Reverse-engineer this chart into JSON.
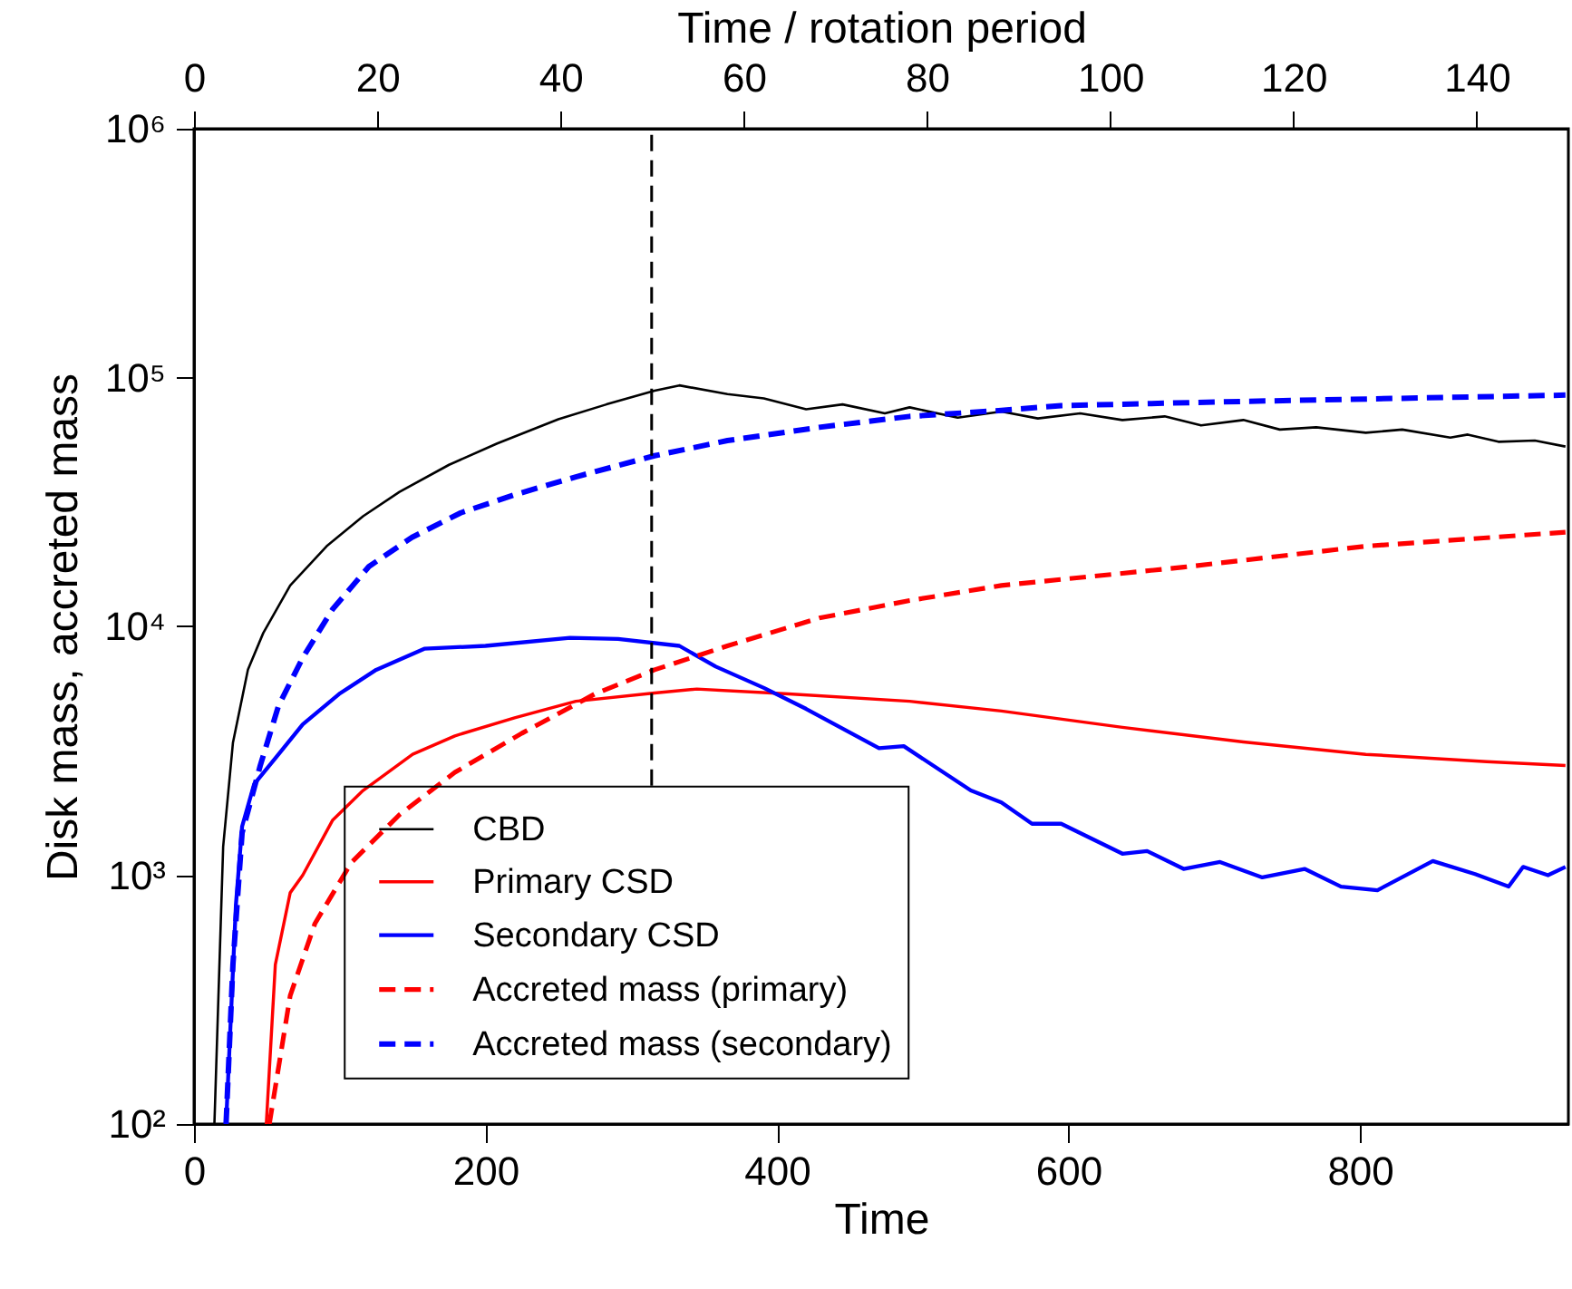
{
  "chart_data": {
    "type": "line",
    "xlabel": "Time",
    "ylabel": "Disk mass, accreted mass",
    "x2label": "Time / rotation period",
    "xlim": [
      0,
      943
    ],
    "xticks": [
      0,
      200,
      400,
      600,
      800
    ],
    "x2lim": [
      0,
      150
    ],
    "x2ticks": [
      0,
      20,
      40,
      60,
      80,
      100,
      120,
      140
    ],
    "ylim": [
      100,
      1000000
    ],
    "log": "y",
    "yticks": [
      {
        "value": 100,
        "label": "10²"
      },
      {
        "value": 1000,
        "label": "10³"
      },
      {
        "value": 10000,
        "label": "10⁴"
      },
      {
        "value": 100000,
        "label": "10⁵"
      },
      {
        "value": 1000000,
        "label": "10⁶"
      }
    ],
    "legend": "bottom",
    "grid": false,
    "marker": "none",
    "ref_lines": [
      {
        "axis": "x",
        "value": 314,
        "color": "#000000",
        "line_style": "dashed"
      }
    ],
    "series": [
      {
        "name": "CBD",
        "color": "#000000",
        "line_style": "solid",
        "x": [
          14,
          20,
          26.7,
          37,
          47.5,
          66,
          91,
          116,
          141,
          175,
          208,
          250,
          283,
          316,
          333,
          366,
          391,
          420,
          445,
          474,
          491,
          524,
          554,
          579,
          608,
          637,
          666,
          691,
          720,
          745,
          770,
          804,
          829,
          862,
          874,
          895,
          920,
          941
        ],
        "values": [
          100,
          1300,
          3400,
          6700,
          9400,
          14600,
          21000,
          27700,
          34700,
          44600,
          54300,
          68000,
          78000,
          88500,
          93000,
          85800,
          82400,
          74600,
          78000,
          71800,
          75900,
          69000,
          73000,
          68500,
          71800,
          67500,
          69800,
          64200,
          67500,
          61800,
          63100,
          60000,
          61800,
          57400,
          59000,
          55200,
          55800,
          52800
        ]
      },
      {
        "name": "Primary CSD",
        "color": "#ff0000",
        "line_style": "solid",
        "x": [
          49.6,
          55.8,
          66,
          74.6,
          95,
          116,
          150,
          179,
          220,
          262,
          316,
          345,
          408,
          491,
          554,
          637,
          720,
          804,
          887,
          941
        ],
        "values": [
          100,
          437,
          850,
          1000,
          1660,
          2190,
          3060,
          3630,
          4290,
          5000,
          5400,
          5600,
          5350,
          5000,
          4570,
          3930,
          3430,
          3060,
          2860,
          2760
        ]
      },
      {
        "name": "Secondary CSD",
        "color": "#0000ff",
        "line_style": "solid",
        "x": [
          22,
          28.75,
          33,
          41.25,
          58,
          74.6,
          99.6,
          125,
          158,
          200,
          258,
          291,
          333,
          358,
          391,
          420,
          470,
          487,
          533,
          554,
          575,
          595,
          637,
          654,
          679,
          704,
          733,
          762,
          787,
          812,
          850,
          879,
          902,
          912,
          929,
          941
        ],
        "values": [
          100,
          760,
          1570,
          2320,
          3060,
          4040,
          5350,
          6690,
          8130,
          8350,
          8990,
          8900,
          8350,
          6890,
          5660,
          4660,
          3240,
          3300,
          2190,
          1960,
          1610,
          1610,
          1220,
          1250,
          1060,
          1130,
          980,
          1060,
          900,
          870,
          1140,
          1010,
          900,
          1080,
          1000,
          1080
        ]
      },
      {
        "name": "Accreted mass (primary)",
        "color": "#ff0000",
        "line_style": "dashed",
        "x": [
          51.7,
          66,
          83,
          108,
          141,
          179,
          225,
          275,
          316,
          366,
          429,
          491,
          554,
          679,
          804,
          941
        ],
        "values": [
          100,
          328,
          640,
          1125,
          1750,
          2590,
          3720,
          5350,
          6690,
          8350,
          10800,
          12700,
          14600,
          17300,
          21000,
          23900
        ]
      },
      {
        "name": "Accreted mass (secondary)",
        "color": "#0000ff",
        "line_style": "dashed",
        "x": [
          22,
          26.7,
          33,
          45.4,
          58,
          74.6,
          95,
          120,
          149.6,
          183,
          220,
          262,
          316,
          366,
          429,
          491,
          554,
          595,
          720,
          941
        ],
        "values": [
          100,
          437,
          1480,
          2750,
          4800,
          7480,
          11700,
          17400,
          22800,
          28600,
          33800,
          39900,
          48500,
          55800,
          63100,
          69800,
          73800,
          77100,
          80200,
          85000
        ]
      }
    ]
  }
}
